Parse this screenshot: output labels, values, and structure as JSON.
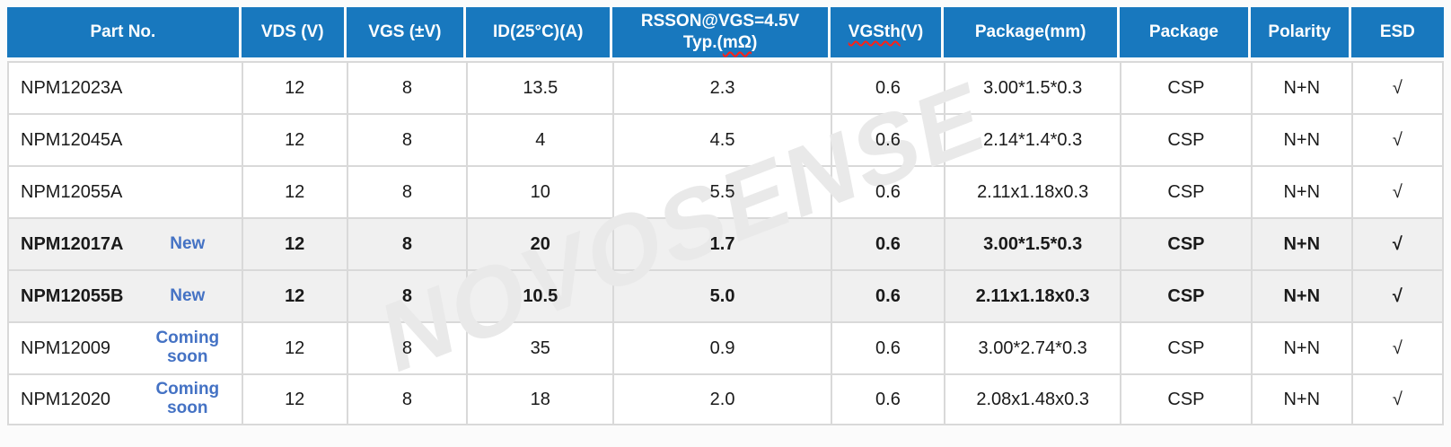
{
  "page": {
    "watermark": "NOVOSENSE"
  },
  "colors": {
    "page_bg": "#fbfbfb",
    "header_bg": "#1878be",
    "header_text": "#ffffff",
    "text": "#1a1a1a",
    "badge_blue": "#4472c4",
    "row_bg": "#ffffff",
    "row_shaded_bg": "#f0f0f0",
    "grid_line": "#d9d9d9",
    "watermark_gray": "#e9e9e9",
    "spellcheck_red": "#ff2116"
  },
  "table": {
    "headers": [
      {
        "id": "part-no",
        "lines": [
          [
            {
              "t": "Part No."
            }
          ]
        ]
      },
      {
        "id": "vds",
        "lines": [
          [
            {
              "t": "VDS (V)"
            }
          ]
        ]
      },
      {
        "id": "vgs",
        "lines": [
          [
            {
              "t": "VGS (±V)"
            }
          ]
        ]
      },
      {
        "id": "id-25c",
        "lines": [
          [
            {
              "t": "ID(25°C)(A)"
            }
          ]
        ]
      },
      {
        "id": "rsson",
        "lines": [
          [
            {
              "t": "RSSON@VGS=4.5V"
            }
          ],
          [
            {
              "t": "Typ.("
            },
            {
              "t": "mΩ",
              "sq": true
            },
            {
              "t": ")"
            }
          ]
        ]
      },
      {
        "id": "vgsth",
        "lines": [
          [
            {
              "t": "VGSth",
              "sq": true
            },
            {
              "t": "(V)"
            }
          ]
        ]
      },
      {
        "id": "package-mm",
        "lines": [
          [
            {
              "t": "Package(mm)"
            }
          ]
        ]
      },
      {
        "id": "package",
        "lines": [
          [
            {
              "t": "Package"
            }
          ]
        ]
      },
      {
        "id": "polarity",
        "lines": [
          [
            {
              "t": "Polarity"
            }
          ]
        ]
      },
      {
        "id": "esd",
        "lines": [
          [
            {
              "t": "ESD"
            }
          ]
        ]
      }
    ],
    "rows": [
      {
        "part": "NPM12023A",
        "badge": "",
        "bold": false,
        "shaded": false,
        "values": [
          "12",
          "8",
          "13.5",
          "2.3",
          "0.6",
          "3.00*1.5*0.3",
          "CSP",
          "N+N",
          "√"
        ]
      },
      {
        "part": "NPM12045A",
        "badge": "",
        "bold": false,
        "shaded": false,
        "values": [
          "12",
          "8",
          "4",
          "4.5",
          "0.6",
          "2.14*1.4*0.3",
          "CSP",
          "N+N",
          "√"
        ]
      },
      {
        "part": "NPM12055A",
        "badge": "",
        "bold": false,
        "shaded": false,
        "values": [
          "12",
          "8",
          "10",
          "5.5",
          "0.6",
          "2.11x1.18x0.3",
          "CSP",
          "N+N",
          "√"
        ]
      },
      {
        "part": "NPM12017A",
        "badge": "New",
        "bold": true,
        "shaded": true,
        "values": [
          "12",
          "8",
          "20",
          "1.7",
          "0.6",
          "3.00*1.5*0.3",
          "CSP",
          "N+N",
          "√"
        ]
      },
      {
        "part": "NPM12055B",
        "badge": "New",
        "bold": true,
        "shaded": true,
        "values": [
          "12",
          "8",
          "10.5",
          "5.0",
          "0.6",
          "2.11x1.18x0.3",
          "CSP",
          "N+N",
          "√"
        ]
      },
      {
        "part": "NPM12009",
        "badge": "Coming soon",
        "bold": false,
        "shaded": false,
        "values": [
          "12",
          "8",
          "35",
          "0.9",
          "0.6",
          "3.00*2.74*0.3",
          "CSP",
          "N+N",
          "√"
        ]
      },
      {
        "part": "NPM12020",
        "badge": "Coming soon",
        "bold": false,
        "shaded": false,
        "values": [
          "12",
          "8",
          "18",
          "2.0",
          "0.6",
          "2.08x1.48x0.3",
          "CSP",
          "N+N",
          "√"
        ]
      }
    ]
  }
}
